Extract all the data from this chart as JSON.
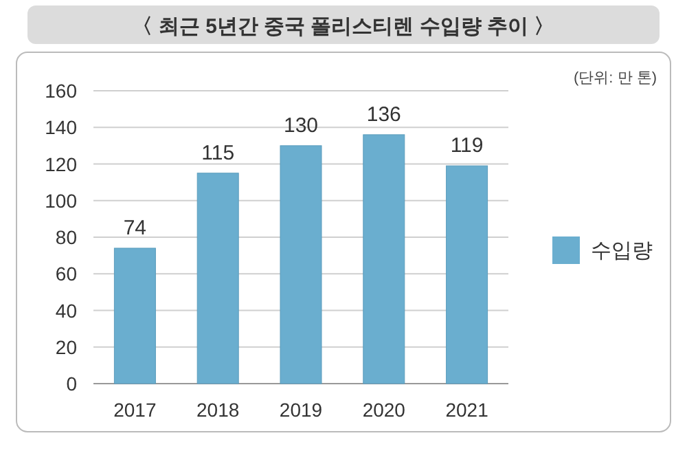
{
  "chart_data": {
    "type": "bar",
    "title": "〈 최근 5년간 중국 폴리스티렌 수입량 추이 〉",
    "annotations": [
      "(단위: 만 톤)"
    ],
    "categories": [
      "2017",
      "2018",
      "2019",
      "2020",
      "2021"
    ],
    "series": [
      {
        "name": "수입량",
        "color": "#6aaecf",
        "values": [
          74,
          115,
          130,
          136,
          119
        ]
      }
    ],
    "ylim": [
      0,
      160
    ],
    "yticks": [
      0,
      20,
      40,
      60,
      80,
      100,
      120,
      140,
      160
    ],
    "grid": "y",
    "legend": "right",
    "data_labels": true
  }
}
